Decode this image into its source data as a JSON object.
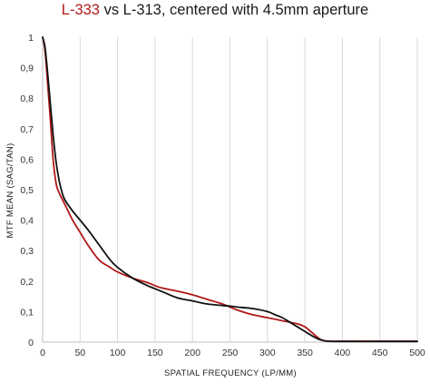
{
  "chart_data": {
    "type": "line",
    "title": {
      "part1": "L-333",
      "part2": " vs L-313, centered with 4.5mm aperture"
    },
    "xlabel": "SPATIAL FREQUENCY (LP/MM)",
    "ylabel": "MTF MEAN (SAG/TAN)",
    "xlim": [
      0,
      500
    ],
    "ylim": [
      0,
      1
    ],
    "x_ticks": [
      0,
      50,
      100,
      150,
      200,
      250,
      300,
      350,
      400,
      450,
      500
    ],
    "y_ticks": [
      0,
      0.1,
      0.2,
      0.3,
      0.4,
      0.5,
      0.6,
      0.7,
      0.8,
      0.9,
      1
    ],
    "y_tick_labels": [
      "0",
      "0,1",
      "0,2",
      "0,3",
      "0,4",
      "0,5",
      "0,6",
      "0,7",
      "0,8",
      "0,9",
      "1"
    ],
    "grid": "vertical",
    "series": [
      {
        "name": "L-333",
        "color": "#b01818",
        "x": [
          0,
          3,
          6,
          10,
          14,
          18,
          22,
          30,
          40,
          50,
          60,
          75,
          90,
          100,
          120,
          140,
          150,
          160,
          180,
          200,
          220,
          240,
          250,
          260,
          280,
          300,
          320,
          340,
          350,
          360,
          370,
          380,
          400,
          450,
          500
        ],
        "y": [
          1.0,
          0.96,
          0.87,
          0.74,
          0.6,
          0.52,
          0.49,
          0.45,
          0.4,
          0.36,
          0.32,
          0.27,
          0.245,
          0.23,
          0.21,
          0.195,
          0.185,
          0.177,
          0.167,
          0.155,
          0.14,
          0.125,
          0.115,
          0.105,
          0.09,
          0.08,
          0.07,
          0.06,
          0.05,
          0.03,
          0.01,
          0.003,
          0.003,
          0.003,
          0.003
        ]
      },
      {
        "name": "L-313",
        "color": "#111111",
        "x": [
          0,
          3,
          6,
          10,
          14,
          18,
          22,
          26,
          30,
          40,
          50,
          60,
          75,
          90,
          100,
          120,
          140,
          150,
          160,
          180,
          200,
          220,
          240,
          250,
          260,
          280,
          300,
          310,
          320,
          330,
          340,
          350,
          360,
          370,
          380,
          400,
          450,
          500
        ],
        "y": [
          1.0,
          0.97,
          0.9,
          0.79,
          0.68,
          0.59,
          0.53,
          0.49,
          0.465,
          0.43,
          0.4,
          0.37,
          0.32,
          0.27,
          0.245,
          0.21,
          0.185,
          0.175,
          0.165,
          0.145,
          0.135,
          0.125,
          0.12,
          0.118,
          0.115,
          0.11,
          0.1,
          0.09,
          0.08,
          0.065,
          0.05,
          0.035,
          0.02,
          0.008,
          0.003,
          0.002,
          0.002,
          0.002
        ]
      }
    ]
  }
}
